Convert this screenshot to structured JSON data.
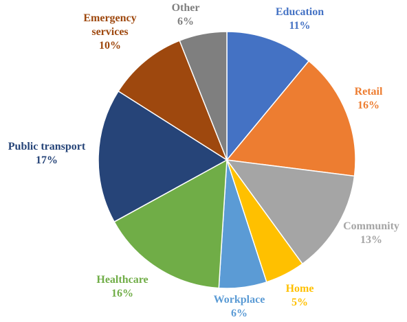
{
  "chart_data": {
    "type": "pie",
    "title": "",
    "slices": [
      {
        "label": "Education",
        "value": 11,
        "value_label": "11%",
        "color": "#4472C4"
      },
      {
        "label": "Retail",
        "value": 16,
        "value_label": "16%",
        "color": "#ED7D31"
      },
      {
        "label": "Community",
        "value": 13,
        "value_label": "13%",
        "color": "#A5A5A5"
      },
      {
        "label": "Home",
        "value": 5,
        "value_label": "5%",
        "color": "#FFC000"
      },
      {
        "label": "Workplace",
        "value": 6,
        "value_label": "6%",
        "color": "#5B9BD5"
      },
      {
        "label": "Healthcare",
        "value": 16,
        "value_label": "16%",
        "color": "#70AD47"
      },
      {
        "label": "Public transport",
        "value": 17,
        "value_label": "17%",
        "color": "#264478"
      },
      {
        "label": "Emergency services",
        "value": 10,
        "value_label": "10%",
        "color": "#9E480E"
      },
      {
        "label": "Other",
        "value": 6,
        "value_label": "6%",
        "color": "#7F7F7F"
      }
    ],
    "start_angle": "12 o'clock",
    "direction": "clockwise",
    "legend": "none",
    "data_labels": "category name and percentage outside each slice"
  }
}
